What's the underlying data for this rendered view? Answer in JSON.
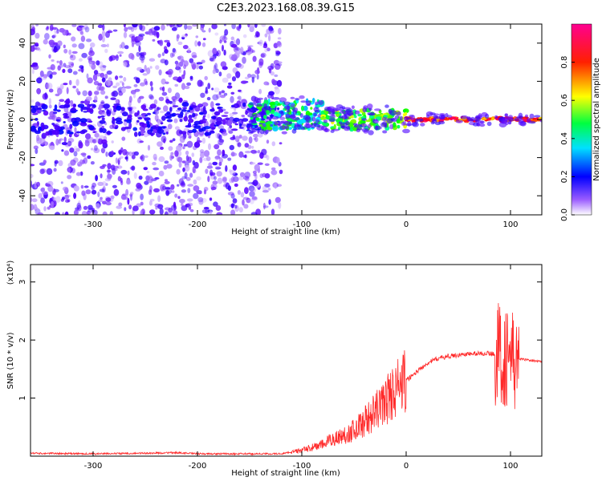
{
  "title": "C2E3.2023.168.08.39.G15",
  "chart_data": [
    {
      "type": "heatmap",
      "xlabel": "Height of straight line (km)",
      "ylabel": "Frequency (Hz)",
      "xlim": [
        -360,
        130
      ],
      "ylim": [
        -50,
        50
      ],
      "xticks": [
        -300,
        -200,
        -100,
        0,
        100
      ],
      "yticks": [
        -40,
        -20,
        0,
        20,
        40
      ],
      "colorbar": {
        "label": "Normalized spectral amplitude",
        "range": [
          0.0,
          1.0
        ],
        "ticks": [
          0.0,
          0.2,
          0.4,
          0.6,
          0.8
        ],
        "colormap": [
          "#ffffff",
          "#5a00ff",
          "#0000ff",
          "#00ffff",
          "#00ff00",
          "#ffff00",
          "#ff0000",
          "#ff0090"
        ]
      },
      "regions": [
        {
          "x": [
            -360,
            -120
          ],
          "y": [
            -50,
            50
          ],
          "level": 0.2,
          "pattern": "broadband speckle"
        },
        {
          "x": [
            -150,
            -80
          ],
          "y": [
            -5,
            10
          ],
          "level": 0.5,
          "pattern": "cyan-green band"
        },
        {
          "x": [
            -80,
            0
          ],
          "y": [
            -5,
            5
          ],
          "level": 0.6,
          "pattern": "green-yellow band"
        },
        {
          "x": [
            0,
            130
          ],
          "y": [
            -1,
            1
          ],
          "level": 0.85,
          "pattern": "red narrow line at 0 Hz"
        }
      ]
    },
    {
      "type": "line",
      "xlabel": "Height of straight line (km)",
      "ylabel": "SNR (10 * v/v)",
      "y_multiplier": "(x10⁴)",
      "xlim": [
        -360,
        130
      ],
      "ylim": [
        0,
        3.3
      ],
      "xticks": [
        -300,
        -200,
        -100,
        0,
        100
      ],
      "yticks": [
        1,
        2,
        3
      ],
      "series": [
        {
          "color": "#ff2a2a",
          "x": [
            -360,
            -300,
            -250,
            -220,
            -200,
            -150,
            -120,
            -100,
            -90,
            -80,
            -70,
            -60,
            -50,
            -40,
            -30,
            -20,
            -10,
            0,
            10,
            20,
            30,
            40,
            50,
            60,
            70,
            80,
            90,
            95,
            100,
            103,
            105,
            110,
            120,
            130
          ],
          "y": [
            0.05,
            0.04,
            0.05,
            0.06,
            0.04,
            0.04,
            0.04,
            0.1,
            0.15,
            0.2,
            0.3,
            0.35,
            0.45,
            0.6,
            0.75,
            0.95,
            1.15,
            1.3,
            1.45,
            1.6,
            1.68,
            1.72,
            1.74,
            1.76,
            1.77,
            1.77,
            1.75,
            1.7,
            1.8,
            1.5,
            1.68,
            1.67,
            1.65,
            1.63
          ]
        }
      ]
    }
  ]
}
